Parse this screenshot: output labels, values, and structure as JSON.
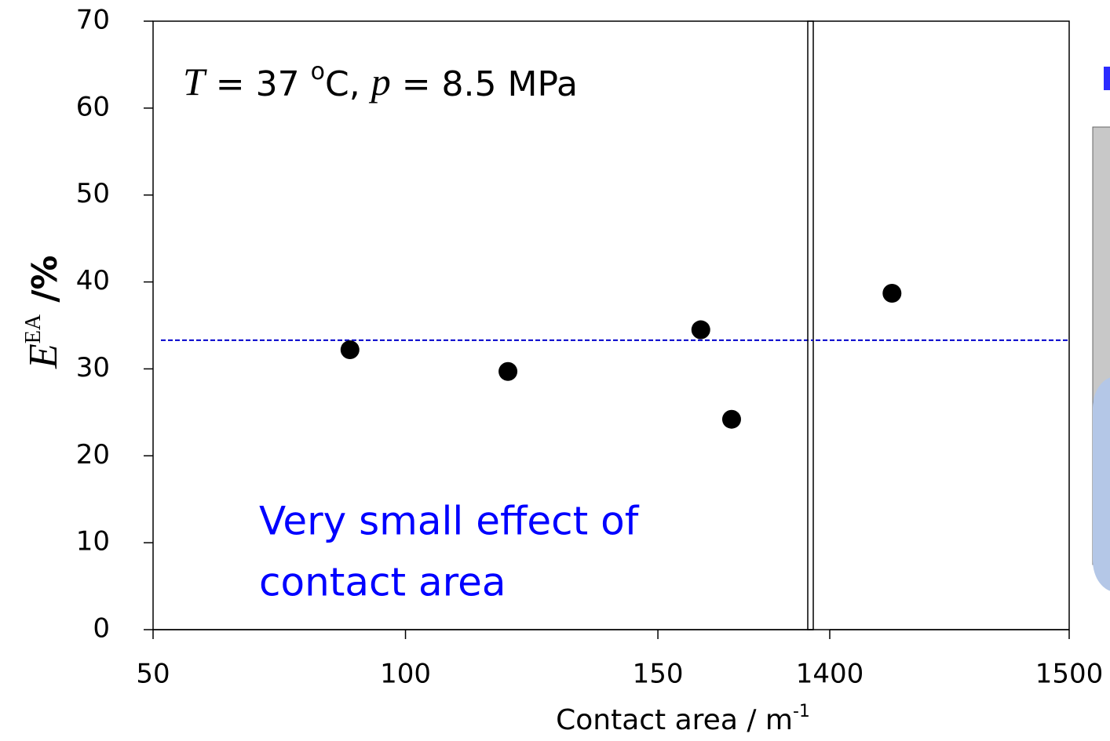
{
  "chart_data": [
    {
      "type": "scatter",
      "condition": [
        "T",
        " = 37 ",
        "o",
        "C,  ",
        "p",
        " = 8.5 MPa"
      ],
      "annotation": [
        "Very small effect of",
        "contact area"
      ],
      "annotation_color": "#0000ff",
      "ylabel": [
        "E",
        "EA",
        " /%"
      ],
      "xlabel": [
        "Contact area / m",
        "-1"
      ],
      "xlim": [
        50,
        180
      ],
      "xticks": [
        50,
        100,
        150
      ],
      "ylim": [
        0,
        70
      ],
      "yticks": [
        0,
        10,
        20,
        30,
        40,
        50,
        60,
        70
      ],
      "x": [
        89,
        120.3,
        158.5,
        164.6
      ],
      "y": [
        32.2,
        29.7,
        34.5,
        24.2
      ],
      "color": "#000000",
      "reference_line": {
        "value": 33.3,
        "color": "#0000cc",
        "style": "dashed"
      }
    },
    {
      "type": "scatter",
      "xlim": [
        1400,
        1500
      ],
      "xticks": [
        1400,
        1500
      ],
      "ylim": [
        0,
        70
      ],
      "x": [
        1426
      ],
      "y": [
        38.7
      ],
      "color": "#000000",
      "reference_line": {
        "value": 33.3,
        "color": "#0000cc",
        "style": "dashed"
      }
    }
  ]
}
